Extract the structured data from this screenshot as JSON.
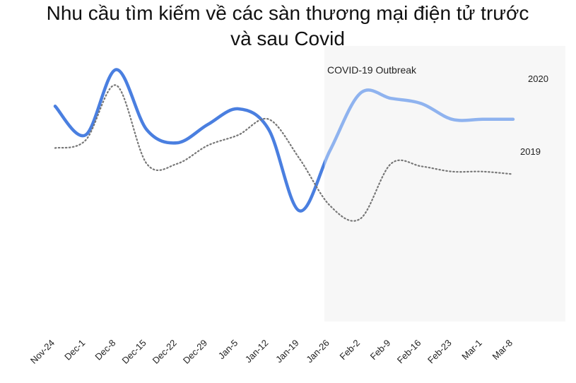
{
  "chart_data": {
    "type": "line",
    "title": "Nhu cầu tìm kiếm về các sàn thương mại điện tử trước và sau Covid",
    "annotation": "COVID-19 Outbreak",
    "categories": [
      "Nov-24",
      "Dec-1",
      "Dec-8",
      "Dec-15",
      "Dec-22",
      "Dec-29",
      "Jan-5",
      "Jan-12",
      "Jan-19",
      "Jan-26",
      "Feb-2",
      "Feb-9",
      "Feb-16",
      "Feb-23",
      "Mar-1",
      "Mar-8"
    ],
    "ylim": [
      0,
      100
    ],
    "series": [
      {
        "name": "2020",
        "color": "#4a7fe0",
        "highlight_color": "#8fb3ef",
        "style": "solid",
        "values": [
          81,
          70,
          95,
          72,
          67,
          74,
          80,
          72,
          41,
          64,
          86,
          84,
          82,
          76,
          76,
          76
        ]
      },
      {
        "name": "2019",
        "color": "#777777",
        "style": "dotted",
        "values": [
          65,
          68,
          89,
          59,
          59,
          66,
          70,
          76,
          61,
          43,
          38,
          59,
          58,
          56,
          56,
          55
        ]
      }
    ]
  }
}
